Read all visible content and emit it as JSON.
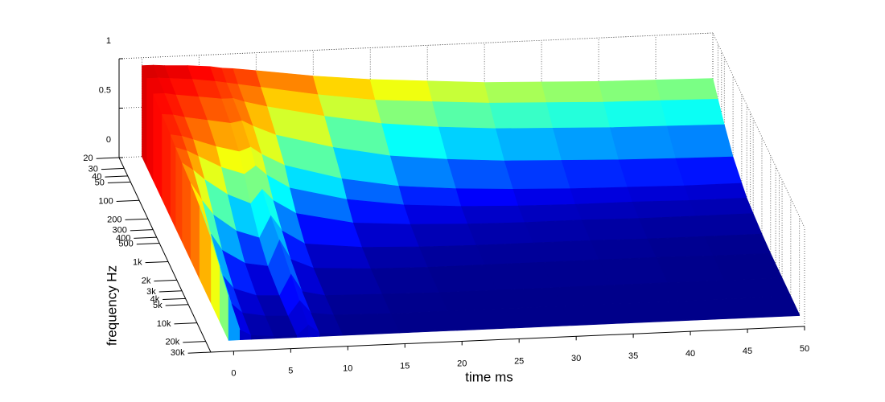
{
  "chart_data": {
    "type": "waterfall",
    "xlabel": "time  ms",
    "ylabel": "frequency  Hz",
    "x": [
      0,
      1,
      2,
      4,
      6,
      7,
      8,
      10,
      15,
      20,
      25,
      30,
      35,
      40,
      45,
      50
    ],
    "frequencies": [
      20,
      30,
      50,
      100,
      200,
      300,
      500,
      1000,
      2000,
      5000,
      10000,
      20000
    ],
    "values": [
      [
        0.92,
        0.92,
        0.91,
        0.9,
        0.88,
        0.86,
        0.85,
        0.82,
        0.74,
        0.68,
        0.64,
        0.6,
        0.58,
        0.56,
        0.55,
        0.54
      ],
      [
        0.9,
        0.9,
        0.89,
        0.87,
        0.84,
        0.82,
        0.8,
        0.76,
        0.66,
        0.58,
        0.54,
        0.5,
        0.48,
        0.46,
        0.45,
        0.44
      ],
      [
        0.88,
        0.88,
        0.86,
        0.83,
        0.8,
        0.8,
        0.76,
        0.7,
        0.58,
        0.48,
        0.42,
        0.38,
        0.36,
        0.34,
        0.33,
        0.32
      ],
      [
        0.86,
        0.85,
        0.82,
        0.78,
        0.74,
        0.76,
        0.7,
        0.6,
        0.45,
        0.34,
        0.28,
        0.24,
        0.22,
        0.2,
        0.19,
        0.18
      ],
      [
        0.84,
        0.82,
        0.78,
        0.7,
        0.64,
        0.68,
        0.6,
        0.48,
        0.32,
        0.22,
        0.17,
        0.14,
        0.12,
        0.11,
        0.1,
        0.1
      ],
      [
        0.82,
        0.78,
        0.72,
        0.6,
        0.52,
        0.6,
        0.5,
        0.36,
        0.22,
        0.14,
        0.1,
        0.08,
        0.07,
        0.07,
        0.06,
        0.06
      ],
      [
        0.8,
        0.72,
        0.62,
        0.46,
        0.36,
        0.5,
        0.38,
        0.24,
        0.12,
        0.08,
        0.06,
        0.05,
        0.05,
        0.04,
        0.04,
        0.04
      ],
      [
        0.78,
        0.6,
        0.45,
        0.28,
        0.2,
        0.42,
        0.26,
        0.12,
        0.06,
        0.04,
        0.03,
        0.03,
        0.03,
        0.02,
        0.02,
        0.02
      ],
      [
        0.74,
        0.45,
        0.28,
        0.14,
        0.1,
        0.36,
        0.16,
        0.06,
        0.03,
        0.02,
        0.02,
        0.02,
        0.02,
        0.02,
        0.01,
        0.01
      ],
      [
        0.66,
        0.28,
        0.14,
        0.06,
        0.05,
        0.26,
        0.08,
        0.03,
        0.02,
        0.01,
        0.01,
        0.01,
        0.01,
        0.01,
        0.01,
        0.01
      ],
      [
        0.56,
        0.18,
        0.08,
        0.04,
        0.03,
        0.18,
        0.05,
        0.02,
        0.01,
        0.01,
        0.01,
        0.01,
        0.01,
        0.01,
        0.01,
        0.01
      ],
      [
        0.45,
        0.1,
        0.04,
        0.02,
        0.02,
        0.12,
        0.03,
        0.01,
        0.01,
        0.01,
        0.01,
        0.01,
        0.01,
        0.01,
        0.01,
        0.01
      ]
    ],
    "xlim": [
      -2,
      50
    ],
    "xticks": [
      0,
      5,
      10,
      15,
      20,
      25,
      30,
      35,
      40,
      45,
      50
    ],
    "ylim": [
      20,
      30000
    ],
    "yscale": "log",
    "yticks": [
      20,
      30,
      40,
      50,
      100,
      200,
      300,
      400,
      500,
      {
        "value": 1000,
        "label": "1k"
      },
      {
        "value": 2000,
        "label": "2k"
      },
      {
        "value": 3000,
        "label": "3k"
      },
      {
        "value": 4000,
        "label": "4k"
      },
      {
        "value": 5000,
        "label": "5k"
      },
      {
        "value": 10000,
        "label": "10k"
      },
      {
        "value": 20000,
        "label": "20k"
      },
      {
        "value": 30000,
        "label": "30k"
      }
    ],
    "zlim": [
      0,
      1
    ],
    "zticks": [
      0,
      0.5,
      1
    ],
    "colormap": "jet",
    "grid": true
  }
}
